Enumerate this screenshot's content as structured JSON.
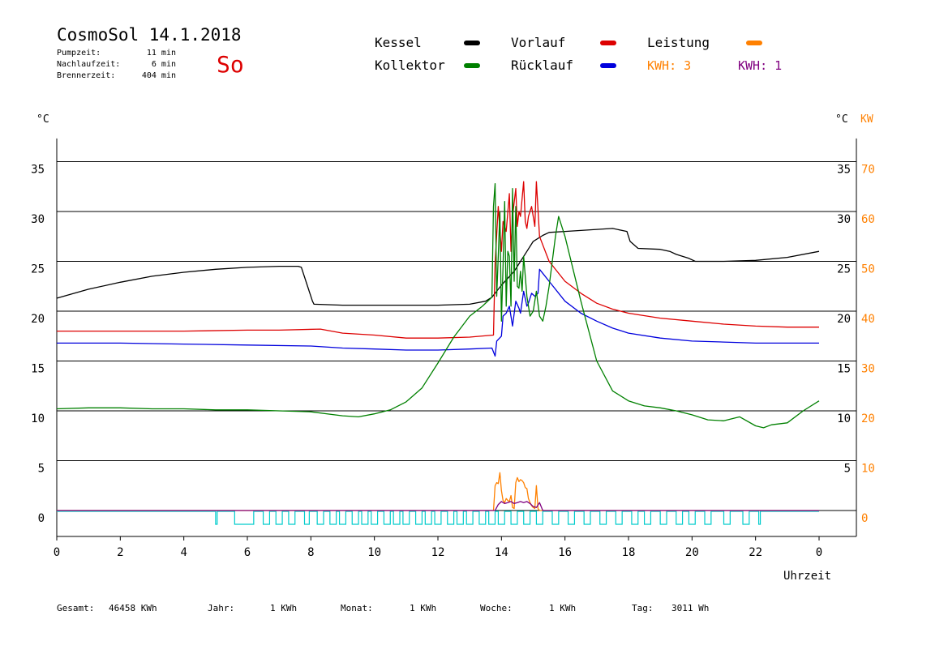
{
  "header": {
    "title": "CosmoSol 14.1.2018",
    "day": "So",
    "stats": [
      {
        "label": "Pumpzeit:",
        "value": "11 min"
      },
      {
        "label": "Nachlaufzeit:",
        "value": "6 min"
      },
      {
        "label": "Brennerzeit:",
        "value": "404 min"
      }
    ]
  },
  "legend": {
    "items": [
      {
        "label": "Kessel",
        "color": "#000000"
      },
      {
        "label": "Kollektor",
        "color": "#008000"
      },
      {
        "label": "Vorlauf",
        "color": "#dd0000"
      },
      {
        "label": "Rücklauf",
        "color": "#0000dd"
      },
      {
        "label": "Leistung",
        "color": "#ff8000"
      }
    ],
    "kwh": [
      {
        "text": "KWH: 3",
        "color": "#ff8000"
      },
      {
        "text": "KWH: 1",
        "color": "#800080"
      }
    ]
  },
  "axes": {
    "left_unit": "°C",
    "right_unit": "°C",
    "right_unit2": "KW",
    "xlabel": "Uhrzeit"
  },
  "footer": [
    {
      "label": "Gesamt:",
      "value": "46458 KWh"
    },
    {
      "label": "Jahr:",
      "value": "1 KWh"
    },
    {
      "label": "Monat:",
      "value": "1 KWh"
    },
    {
      "label": "Woche:",
      "value": "1 KWh"
    },
    {
      "label": "Tag:",
      "value": "3011 Wh"
    }
  ],
  "colors": {
    "grid": "#000000",
    "kw_axis": "#ff8000",
    "pump": "#00cccc"
  },
  "chart_data": {
    "type": "line",
    "xlabel": "Uhrzeit",
    "x_ticks": [
      "0",
      "2",
      "4",
      "6",
      "8",
      "10",
      "12",
      "14",
      "16",
      "18",
      "20",
      "22",
      "0"
    ],
    "xlim": [
      0,
      24
    ],
    "ylim": [
      -1,
      37
    ],
    "y_ticks_left": [
      "0",
      "5",
      "10",
      "15",
      "20",
      "25",
      "30",
      "35"
    ],
    "y_ticks_right_c": [
      "5",
      "10",
      "15",
      "20",
      "25",
      "30",
      "35"
    ],
    "y_ticks_right_kw": [
      "0",
      "10",
      "20",
      "30",
      "40",
      "50",
      "60",
      "70"
    ],
    "grid": true,
    "series": [
      {
        "name": "Kessel",
        "color": "#000000",
        "x": [
          0,
          1,
          2,
          3,
          4,
          5,
          6,
          7,
          7.6,
          7.7,
          8.05,
          8.1,
          9,
          10,
          11,
          12,
          13,
          13.5,
          13.7,
          14,
          14.4,
          14.8,
          15,
          15.3,
          15.5,
          16,
          17,
          17.5,
          17.95,
          18.05,
          18.3,
          19,
          19.3,
          19.5,
          19.9,
          20.1,
          21,
          22,
          23,
          24
        ],
        "y": [
          21.3,
          22.2,
          22.9,
          23.5,
          23.9,
          24.2,
          24.4,
          24.5,
          24.5,
          24.4,
          21.0,
          20.7,
          20.6,
          20.6,
          20.6,
          20.6,
          20.7,
          21.0,
          21.4,
          22.6,
          24.0,
          26.0,
          27.0,
          27.6,
          27.9,
          28.0,
          28.2,
          28.3,
          28.0,
          27.0,
          26.3,
          26.2,
          26.0,
          25.7,
          25.3,
          25.0,
          25.0,
          25.1,
          25.4,
          26.0
        ]
      },
      {
        "name": "Vorlauf",
        "color": "#dd0000",
        "x": [
          0,
          2,
          4,
          6,
          7,
          8.3,
          9,
          10,
          11,
          12,
          13,
          13.75,
          13.8,
          13.9,
          14,
          14.05,
          14.15,
          14.25,
          14.3,
          14.35,
          14.45,
          14.5,
          14.55,
          14.6,
          14.7,
          14.75,
          14.8,
          14.85,
          14.95,
          15.05,
          15.1,
          15.2,
          15.5,
          16,
          16.5,
          17,
          17.5,
          18,
          19,
          20,
          21,
          22,
          23,
          24
        ],
        "y": [
          18.0,
          18.0,
          18.0,
          18.1,
          18.1,
          18.2,
          17.8,
          17.6,
          17.3,
          17.3,
          17.4,
          17.6,
          24.8,
          30.5,
          26.0,
          29.0,
          28.0,
          31.8,
          26.0,
          29.5,
          32.3,
          28.5,
          30.0,
          29.5,
          33.0,
          29.0,
          28.3,
          29.5,
          30.5,
          28.5,
          33.0,
          27.5,
          25.0,
          23.0,
          21.8,
          20.8,
          20.2,
          19.8,
          19.3,
          19.0,
          18.7,
          18.5,
          18.4,
          18.4
        ]
      },
      {
        "name": "Rücklauf",
        "color": "#0000dd",
        "x": [
          0,
          2,
          4,
          6,
          8,
          9,
          10,
          11,
          12,
          13,
          13.7,
          13.8,
          13.85,
          14,
          14.05,
          14.15,
          14.25,
          14.35,
          14.45,
          14.55,
          14.6,
          14.7,
          14.8,
          14.85,
          14.95,
          15.05,
          15.15,
          15.2,
          15.3,
          15.5,
          16,
          16.5,
          17,
          17.5,
          18,
          19,
          20,
          21,
          22,
          23,
          24
        ],
        "y": [
          16.8,
          16.8,
          16.7,
          16.6,
          16.5,
          16.3,
          16.2,
          16.1,
          16.1,
          16.2,
          16.3,
          15.5,
          17.0,
          17.5,
          19.5,
          19.8,
          20.5,
          18.5,
          21.0,
          20.3,
          19.8,
          22.0,
          20.5,
          20.8,
          21.8,
          21.5,
          21.8,
          24.2,
          23.8,
          23.0,
          21.0,
          19.8,
          19.0,
          18.3,
          17.8,
          17.3,
          17.0,
          16.9,
          16.8,
          16.8,
          16.8
        ]
      },
      {
        "name": "Kollektor",
        "color": "#008000",
        "x": [
          0,
          1,
          2,
          3,
          4,
          5,
          6,
          7,
          8,
          9,
          9.5,
          10,
          10.5,
          11,
          11.5,
          12,
          12.5,
          13,
          13.4,
          13.7,
          13.75,
          13.8,
          13.85,
          13.9,
          13.95,
          14,
          14.05,
          14.1,
          14.15,
          14.2,
          14.25,
          14.3,
          14.35,
          14.4,
          14.45,
          14.5,
          14.55,
          14.6,
          14.65,
          14.7,
          14.8,
          14.9,
          15,
          15.1,
          15.2,
          15.3,
          15.4,
          15.5,
          15.6,
          15.7,
          15.8,
          16,
          16.5,
          17,
          17.5,
          18,
          18.5,
          19,
          19.5,
          20,
          20.5,
          21,
          21.5,
          22,
          22.25,
          22.5,
          23,
          23.5,
          24
        ],
        "y": [
          10.2,
          10.3,
          10.3,
          10.2,
          10.2,
          10.1,
          10.1,
          10.0,
          9.9,
          9.5,
          9.4,
          9.7,
          10.1,
          10.9,
          12.3,
          14.8,
          17.4,
          19.5,
          20.5,
          21.4,
          30.5,
          32.8,
          21.5,
          25.5,
          30.0,
          19.0,
          24.5,
          31.0,
          20.5,
          26.0,
          25.5,
          20.5,
          32.3,
          23.0,
          30.5,
          22.5,
          22.3,
          24.0,
          22.0,
          25.5,
          21.5,
          19.5,
          20.0,
          22.0,
          19.5,
          19.0,
          20.5,
          22.5,
          25.0,
          27.5,
          29.5,
          27.5,
          21.0,
          15.0,
          12.0,
          11.0,
          10.5,
          10.3,
          10.0,
          9.6,
          9.1,
          9.0,
          9.4,
          8.5,
          8.3,
          8.6,
          8.8,
          10.0,
          11.0
        ]
      },
      {
        "name": "Leistung",
        "color": "#ff8000",
        "x": [
          0,
          13.75,
          13.8,
          13.85,
          13.9,
          13.95,
          14,
          14.05,
          14.1,
          14.15,
          14.2,
          14.25,
          14.3,
          14.35,
          14.4,
          14.45,
          14.5,
          14.55,
          14.6,
          14.65,
          14.7,
          14.75,
          14.8,
          14.85,
          14.9,
          14.95,
          15.0,
          15.05,
          15.1,
          15.15,
          15.2,
          24
        ],
        "y": [
          0,
          0,
          2.5,
          2.8,
          2.7,
          3.8,
          2.0,
          1.0,
          0.8,
          1.2,
          1.0,
          0.9,
          1.5,
          0.3,
          0.2,
          2.8,
          3.3,
          2.9,
          3.1,
          3.0,
          2.8,
          2.3,
          2.2,
          1.2,
          0.8,
          0.5,
          0.3,
          0.2,
          2.5,
          0.2,
          0,
          0
        ]
      },
      {
        "name": "KWH 1",
        "color": "#800080",
        "x": [
          0,
          13.8,
          13.9,
          14.0,
          14.1,
          14.2,
          14.3,
          14.4,
          14.5,
          14.6,
          14.7,
          14.8,
          14.9,
          15.0,
          15.1,
          15.2,
          15.3,
          24
        ],
        "y": [
          0,
          0,
          0.6,
          0.9,
          0.7,
          0.8,
          0.9,
          0.7,
          0.8,
          0.9,
          0.8,
          0.9,
          0.7,
          0.4,
          0.3,
          0.8,
          0,
          0
        ]
      }
    ],
    "pump_pulses": [
      [
        5.0,
        5.05
      ],
      [
        5.6,
        6.2
      ],
      [
        6.5,
        6.7
      ],
      [
        6.9,
        7.1
      ],
      [
        7.3,
        7.5
      ],
      [
        7.8,
        7.95
      ],
      [
        8.2,
        8.4
      ],
      [
        8.6,
        8.8
      ],
      [
        8.9,
        9.1
      ],
      [
        9.3,
        9.5
      ],
      [
        9.6,
        9.8
      ],
      [
        9.9,
        10.1
      ],
      [
        10.3,
        10.5
      ],
      [
        10.6,
        10.8
      ],
      [
        10.9,
        11.1
      ],
      [
        11.3,
        11.5
      ],
      [
        11.6,
        11.8
      ],
      [
        11.9,
        12.1
      ],
      [
        12.3,
        12.5
      ],
      [
        12.6,
        12.8
      ],
      [
        12.9,
        13.1
      ],
      [
        13.3,
        13.5
      ],
      [
        13.6,
        13.8
      ],
      [
        13.9,
        14.1
      ],
      [
        14.3,
        14.5
      ],
      [
        14.7,
        14.9
      ],
      [
        15.1,
        15.3
      ],
      [
        15.6,
        15.8
      ],
      [
        16.1,
        16.3
      ],
      [
        16.6,
        16.8
      ],
      [
        17.1,
        17.3
      ],
      [
        17.6,
        17.8
      ],
      [
        18.1,
        18.3
      ],
      [
        18.5,
        18.7
      ],
      [
        19.0,
        19.2
      ],
      [
        19.5,
        19.7
      ],
      [
        19.9,
        20.1
      ],
      [
        20.4,
        20.6
      ],
      [
        21.0,
        21.2
      ],
      [
        21.6,
        21.8
      ],
      [
        22.1,
        22.15
      ]
    ]
  }
}
